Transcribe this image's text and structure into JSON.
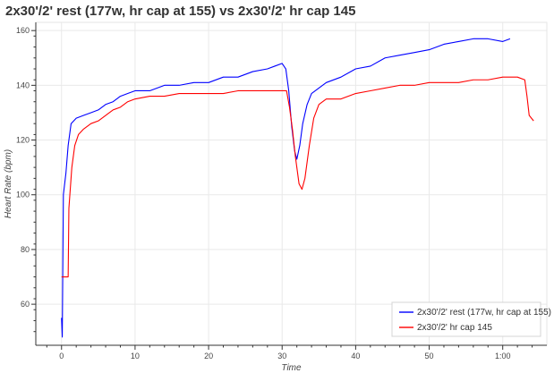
{
  "chart_data": {
    "type": "line",
    "title": "2x30'/2' rest (177w, hr cap at 155) vs 2x30'/2' hr cap 145",
    "xlabel": "Time",
    "ylabel": "Heart Rate (bpm)",
    "xlim": [
      -3.5,
      66
    ],
    "ylim": [
      45,
      163
    ],
    "x_ticks": [
      0,
      10,
      20,
      30,
      40,
      50,
      60
    ],
    "x_tick_labels": [
      "0",
      "10",
      "20",
      "30",
      "40",
      "50",
      "1:00"
    ],
    "y_ticks": [
      60,
      80,
      100,
      120,
      140,
      160
    ],
    "y_tick_labels": [
      "60",
      "80",
      "100",
      "120",
      "140",
      "160"
    ],
    "grid": true,
    "legend_position": "bottom-right",
    "series": [
      {
        "name": "2x30'/2' rest (177w, hr cap at 155)",
        "color": "#0000ff",
        "points": [
          [
            0,
            55
          ],
          [
            0.1,
            48
          ],
          [
            0.25,
            100
          ],
          [
            0.6,
            108
          ],
          [
            0.9,
            118
          ],
          [
            1.3,
            126
          ],
          [
            2,
            128
          ],
          [
            3,
            129
          ],
          [
            4,
            130
          ],
          [
            5,
            131
          ],
          [
            6,
            133
          ],
          [
            7,
            134
          ],
          [
            8,
            136
          ],
          [
            9,
            137
          ],
          [
            10,
            138
          ],
          [
            12,
            138
          ],
          [
            14,
            140
          ],
          [
            16,
            140
          ],
          [
            18,
            141
          ],
          [
            20,
            141
          ],
          [
            22,
            143
          ],
          [
            24,
            143
          ],
          [
            26,
            145
          ],
          [
            28,
            146
          ],
          [
            29,
            147
          ],
          [
            30,
            148
          ],
          [
            30.5,
            146
          ],
          [
            30.9,
            138
          ],
          [
            31.3,
            125
          ],
          [
            31.7,
            116
          ],
          [
            32,
            113
          ],
          [
            32.4,
            118
          ],
          [
            32.8,
            126
          ],
          [
            33.4,
            133
          ],
          [
            34,
            137
          ],
          [
            35,
            139
          ],
          [
            36,
            141
          ],
          [
            38,
            143
          ],
          [
            40,
            146
          ],
          [
            42,
            147
          ],
          [
            44,
            150
          ],
          [
            46,
            151
          ],
          [
            48,
            152
          ],
          [
            50,
            153
          ],
          [
            52,
            155
          ],
          [
            54,
            156
          ],
          [
            56,
            157
          ],
          [
            58,
            157
          ],
          [
            60,
            156
          ],
          [
            61,
            157
          ]
        ]
      },
      {
        "name": "2x30'/2' hr cap 145",
        "color": "#ff0000",
        "points": [
          [
            0,
            70
          ],
          [
            0.9,
            70
          ],
          [
            1.0,
            95
          ],
          [
            1.4,
            110
          ],
          [
            1.8,
            118
          ],
          [
            2.3,
            122
          ],
          [
            3,
            124
          ],
          [
            4,
            126
          ],
          [
            5,
            127
          ],
          [
            6,
            129
          ],
          [
            7,
            131
          ],
          [
            8,
            132
          ],
          [
            9,
            134
          ],
          [
            10,
            135
          ],
          [
            12,
            136
          ],
          [
            14,
            136
          ],
          [
            16,
            137
          ],
          [
            18,
            137
          ],
          [
            20,
            137
          ],
          [
            22,
            137
          ],
          [
            24,
            138
          ],
          [
            26,
            138
          ],
          [
            28,
            138
          ],
          [
            30,
            138
          ],
          [
            30.6,
            138
          ],
          [
            31,
            132
          ],
          [
            31.4,
            124
          ],
          [
            31.8,
            114
          ],
          [
            32.3,
            104
          ],
          [
            32.7,
            102
          ],
          [
            33.1,
            106
          ],
          [
            33.7,
            118
          ],
          [
            34.3,
            128
          ],
          [
            35,
            133
          ],
          [
            36,
            135
          ],
          [
            38,
            135
          ],
          [
            40,
            137
          ],
          [
            42,
            138
          ],
          [
            44,
            139
          ],
          [
            46,
            140
          ],
          [
            48,
            140
          ],
          [
            50,
            141
          ],
          [
            52,
            141
          ],
          [
            54,
            141
          ],
          [
            56,
            142
          ],
          [
            58,
            142
          ],
          [
            60,
            143
          ],
          [
            62,
            143
          ],
          [
            63,
            142
          ],
          [
            63.3,
            136
          ],
          [
            63.6,
            129
          ],
          [
            64.2,
            127
          ]
        ]
      }
    ]
  }
}
